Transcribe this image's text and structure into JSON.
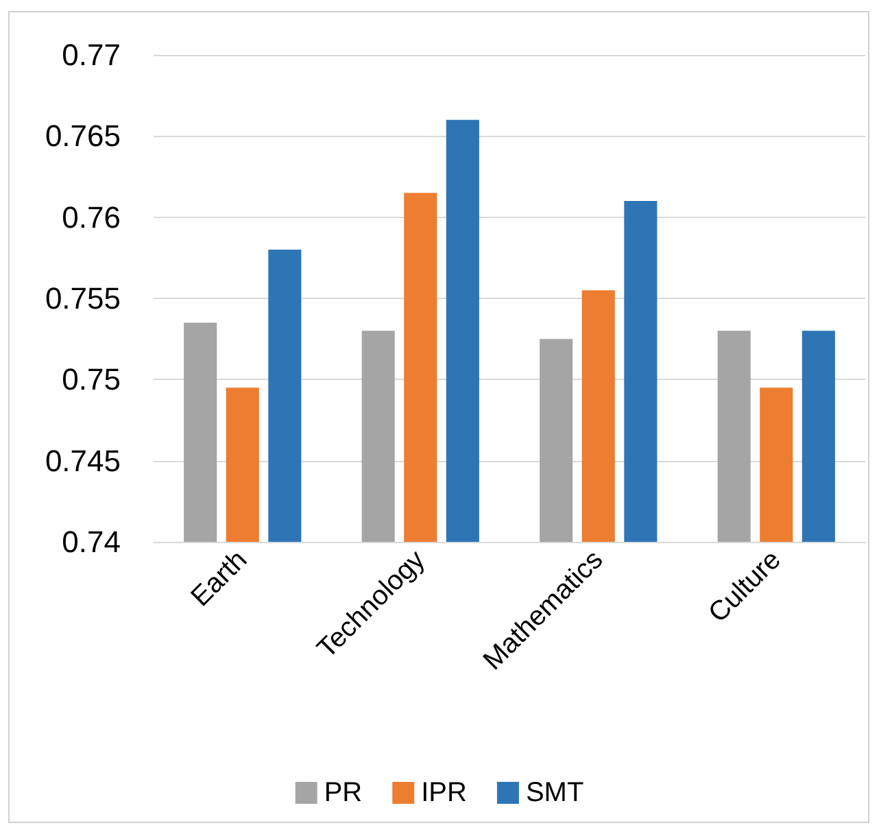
{
  "chart_data": {
    "type": "bar",
    "categories": [
      "Earth",
      "Technology",
      "Mathematics",
      "Culture"
    ],
    "series": [
      {
        "name": "PR",
        "color": "#a5a5a5",
        "values": [
          0.7535,
          0.753,
          0.7525,
          0.753
        ]
      },
      {
        "name": "IPR",
        "color": "#ed7d31",
        "values": [
          0.7495,
          0.7615,
          0.7555,
          0.7495
        ]
      },
      {
        "name": "SMT",
        "color": "#2e75b6",
        "values": [
          0.758,
          0.766,
          0.761,
          0.753
        ]
      }
    ],
    "ylim": [
      0.74,
      0.77
    ],
    "yticks": [
      0.74,
      0.745,
      0.75,
      0.755,
      0.76,
      0.765,
      0.77
    ],
    "grid": "y",
    "legend": "bottom"
  }
}
